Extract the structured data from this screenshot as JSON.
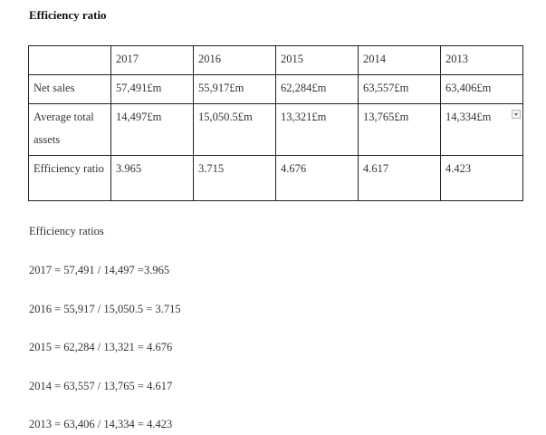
{
  "heading": "Efficiency ratio",
  "table": {
    "header": [
      "",
      "2017",
      "2016",
      "2015",
      "2014",
      "2013"
    ],
    "rows": [
      [
        "Net sales",
        "57,491£m",
        "55,917£m",
        "62,284£m",
        "63,557£m",
        "63,406£m"
      ],
      [
        "Average total assets",
        "14,497£m",
        "15,050.5£m",
        "13,321£m",
        "13,765£m",
        "14,334£m"
      ],
      [
        "Efficiency ratio",
        "3.965",
        "3.715",
        "4.676",
        "4.617",
        "4.423"
      ]
    ]
  },
  "section_label": "Efficiency ratios",
  "calculations": [
    "2017 = 57,491 / 14,497 =3.965",
    "2016 = 55,917 / 15,050.5 = 3.715",
    "2015 = 62,284 / 13,321 = 4.676",
    "2014 = 63,557 / 13,765 = 4.617",
    "2013 = 63,406 / 14,334 = 4.423"
  ],
  "icons": {
    "cell_dropdown": "chevron-down-icon"
  }
}
